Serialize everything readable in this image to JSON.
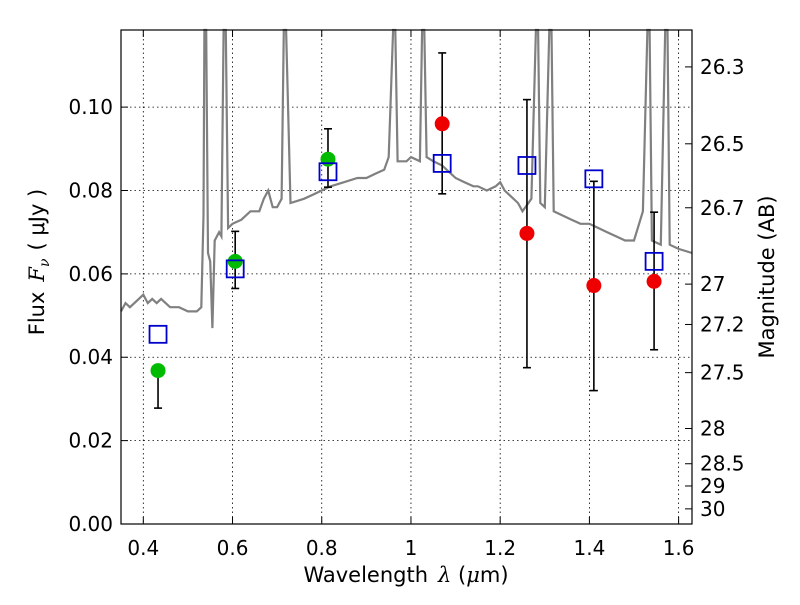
{
  "chart_data": {
    "type": "scatter",
    "xlabel": {
      "prefix": "Wavelength",
      "symbol": "λ",
      "unit_open": " (",
      "unit_mu": "μ",
      "unit_rest": "m)"
    },
    "ylabel": {
      "prefix": "Flux",
      "symbol": "F",
      "subscript": "ν",
      "unit": "( μJy )"
    },
    "y2label": "Magnitude (AB)",
    "xlim": [
      0.35,
      1.63
    ],
    "ylim": [
      0.0,
      0.1185
    ],
    "x_ticks": [
      {
        "value": 0.4,
        "label": "0.4"
      },
      {
        "value": 0.6,
        "label": "0.6"
      },
      {
        "value": 0.8,
        "label": "0.8"
      },
      {
        "value": 1.0,
        "label": "1"
      },
      {
        "value": 1.2,
        "label": "1.2"
      },
      {
        "value": 1.4,
        "label": "1.4"
      },
      {
        "value": 1.6,
        "label": "1.6"
      }
    ],
    "y_ticks": [
      {
        "value": 0.0,
        "label": "0.00"
      },
      {
        "value": 0.02,
        "label": "0.02"
      },
      {
        "value": 0.04,
        "label": "0.04"
      },
      {
        "value": 0.06,
        "label": "0.06"
      },
      {
        "value": 0.08,
        "label": "0.08"
      },
      {
        "value": 0.1,
        "label": "0.10"
      }
    ],
    "mag_ticks": [
      {
        "mag": 26.3,
        "label": "26.3"
      },
      {
        "mag": 26.5,
        "label": "26.5"
      },
      {
        "mag": 26.7,
        "label": "26.7"
      },
      {
        "mag": 27.0,
        "label": "27"
      },
      {
        "mag": 27.2,
        "label": "27.2"
      },
      {
        "mag": 27.5,
        "label": "27.5"
      },
      {
        "mag": 28.0,
        "label": "28"
      },
      {
        "mag": 28.5,
        "label": "28.5"
      },
      {
        "mag": 29.0,
        "label": "29"
      },
      {
        "mag": 30.0,
        "label": "30"
      }
    ],
    "grid": true,
    "colors": {
      "sed": "#808080",
      "model": "#0000cc",
      "detection": "#00bb00",
      "nondetection": "#ee0000",
      "errorbar": "#000000"
    },
    "sed_template": [
      [
        0.35,
        0.051
      ],
      [
        0.36,
        0.053
      ],
      [
        0.37,
        0.052
      ],
      [
        0.38,
        0.053
      ],
      [
        0.39,
        0.054
      ],
      [
        0.4,
        0.055
      ],
      [
        0.41,
        0.053
      ],
      [
        0.42,
        0.054
      ],
      [
        0.43,
        0.053
      ],
      [
        0.44,
        0.054
      ],
      [
        0.45,
        0.053
      ],
      [
        0.46,
        0.052
      ],
      [
        0.48,
        0.052
      ],
      [
        0.5,
        0.051
      ],
      [
        0.52,
        0.051
      ],
      [
        0.53,
        0.052
      ],
      [
        0.535,
        0.074
      ],
      [
        0.537,
        0.12
      ],
      [
        0.541,
        0.12
      ],
      [
        0.545,
        0.065
      ],
      [
        0.55,
        0.063
      ],
      [
        0.555,
        0.047
      ],
      [
        0.56,
        0.068
      ],
      [
        0.57,
        0.07
      ],
      [
        0.575,
        0.069
      ],
      [
        0.58,
        0.12
      ],
      [
        0.585,
        0.12
      ],
      [
        0.59,
        0.071
      ],
      [
        0.6,
        0.072
      ],
      [
        0.62,
        0.073
      ],
      [
        0.64,
        0.075
      ],
      [
        0.66,
        0.075
      ],
      [
        0.67,
        0.078
      ],
      [
        0.68,
        0.08
      ],
      [
        0.69,
        0.076
      ],
      [
        0.7,
        0.076
      ],
      [
        0.71,
        0.078
      ],
      [
        0.715,
        0.12
      ],
      [
        0.72,
        0.12
      ],
      [
        0.73,
        0.077
      ],
      [
        0.76,
        0.078
      ],
      [
        0.78,
        0.079
      ],
      [
        0.8,
        0.08
      ],
      [
        0.82,
        0.081
      ],
      [
        0.85,
        0.082
      ],
      [
        0.88,
        0.083
      ],
      [
        0.9,
        0.083
      ],
      [
        0.92,
        0.084
      ],
      [
        0.94,
        0.085
      ],
      [
        0.95,
        0.088
      ],
      [
        0.96,
        0.12
      ],
      [
        0.965,
        0.12
      ],
      [
        0.97,
        0.087
      ],
      [
        0.99,
        0.087
      ],
      [
        1.0,
        0.088
      ],
      [
        1.02,
        0.087
      ],
      [
        1.025,
        0.12
      ],
      [
        1.03,
        0.12
      ],
      [
        1.035,
        0.088
      ],
      [
        1.05,
        0.087
      ],
      [
        1.07,
        0.086
      ],
      [
        1.08,
        0.085
      ],
      [
        1.09,
        0.084
      ],
      [
        1.1,
        0.083
      ],
      [
        1.12,
        0.082
      ],
      [
        1.14,
        0.081
      ],
      [
        1.15,
        0.081
      ],
      [
        1.17,
        0.08
      ],
      [
        1.19,
        0.081
      ],
      [
        1.2,
        0.082
      ],
      [
        1.21,
        0.08
      ],
      [
        1.22,
        0.079
      ],
      [
        1.24,
        0.077
      ],
      [
        1.25,
        0.075
      ],
      [
        1.27,
        0.078
      ],
      [
        1.28,
        0.12
      ],
      [
        1.285,
        0.12
      ],
      [
        1.29,
        0.077
      ],
      [
        1.3,
        0.076
      ],
      [
        1.31,
        0.12
      ],
      [
        1.315,
        0.12
      ],
      [
        1.32,
        0.075
      ],
      [
        1.34,
        0.074
      ],
      [
        1.36,
        0.073
      ],
      [
        1.38,
        0.072
      ],
      [
        1.4,
        0.072
      ],
      [
        1.42,
        0.071
      ],
      [
        1.44,
        0.07
      ],
      [
        1.46,
        0.069
      ],
      [
        1.48,
        0.068
      ],
      [
        1.5,
        0.068
      ],
      [
        1.52,
        0.075
      ],
      [
        1.53,
        0.12
      ],
      [
        1.535,
        0.12
      ],
      [
        1.54,
        0.068
      ],
      [
        1.56,
        0.067
      ],
      [
        1.57,
        0.12
      ],
      [
        1.575,
        0.12
      ],
      [
        1.58,
        0.067
      ],
      [
        1.6,
        0.066
      ],
      [
        1.63,
        0.065
      ]
    ],
    "model_points": [
      {
        "x": 0.433,
        "y": 0.0455
      },
      {
        "x": 0.606,
        "y": 0.0612
      },
      {
        "x": 0.814,
        "y": 0.0845
      },
      {
        "x": 1.07,
        "y": 0.0865
      },
      {
        "x": 1.26,
        "y": 0.086
      },
      {
        "x": 1.41,
        "y": 0.0828
      },
      {
        "x": 1.545,
        "y": 0.063
      }
    ],
    "detections": [
      {
        "x": 0.433,
        "y": 0.0368,
        "err_low": 0.0278,
        "err_high": null
      },
      {
        "x": 0.606,
        "y": 0.063,
        "err_low": 0.0565,
        "err_high": 0.0702
      },
      {
        "x": 0.814,
        "y": 0.0875,
        "err_low": 0.0808,
        "err_high": 0.0948
      }
    ],
    "nondetections": [
      {
        "x": 1.07,
        "y": 0.096,
        "err_low": 0.0792,
        "err_high": 0.113
      },
      {
        "x": 1.26,
        "y": 0.0697,
        "err_low": 0.0375,
        "err_high": 0.1018
      },
      {
        "x": 1.41,
        "y": 0.0572,
        "err_low": 0.032,
        "err_high": 0.0822
      },
      {
        "x": 1.545,
        "y": 0.0582,
        "err_low": 0.0418,
        "err_high": 0.0748
      }
    ]
  }
}
